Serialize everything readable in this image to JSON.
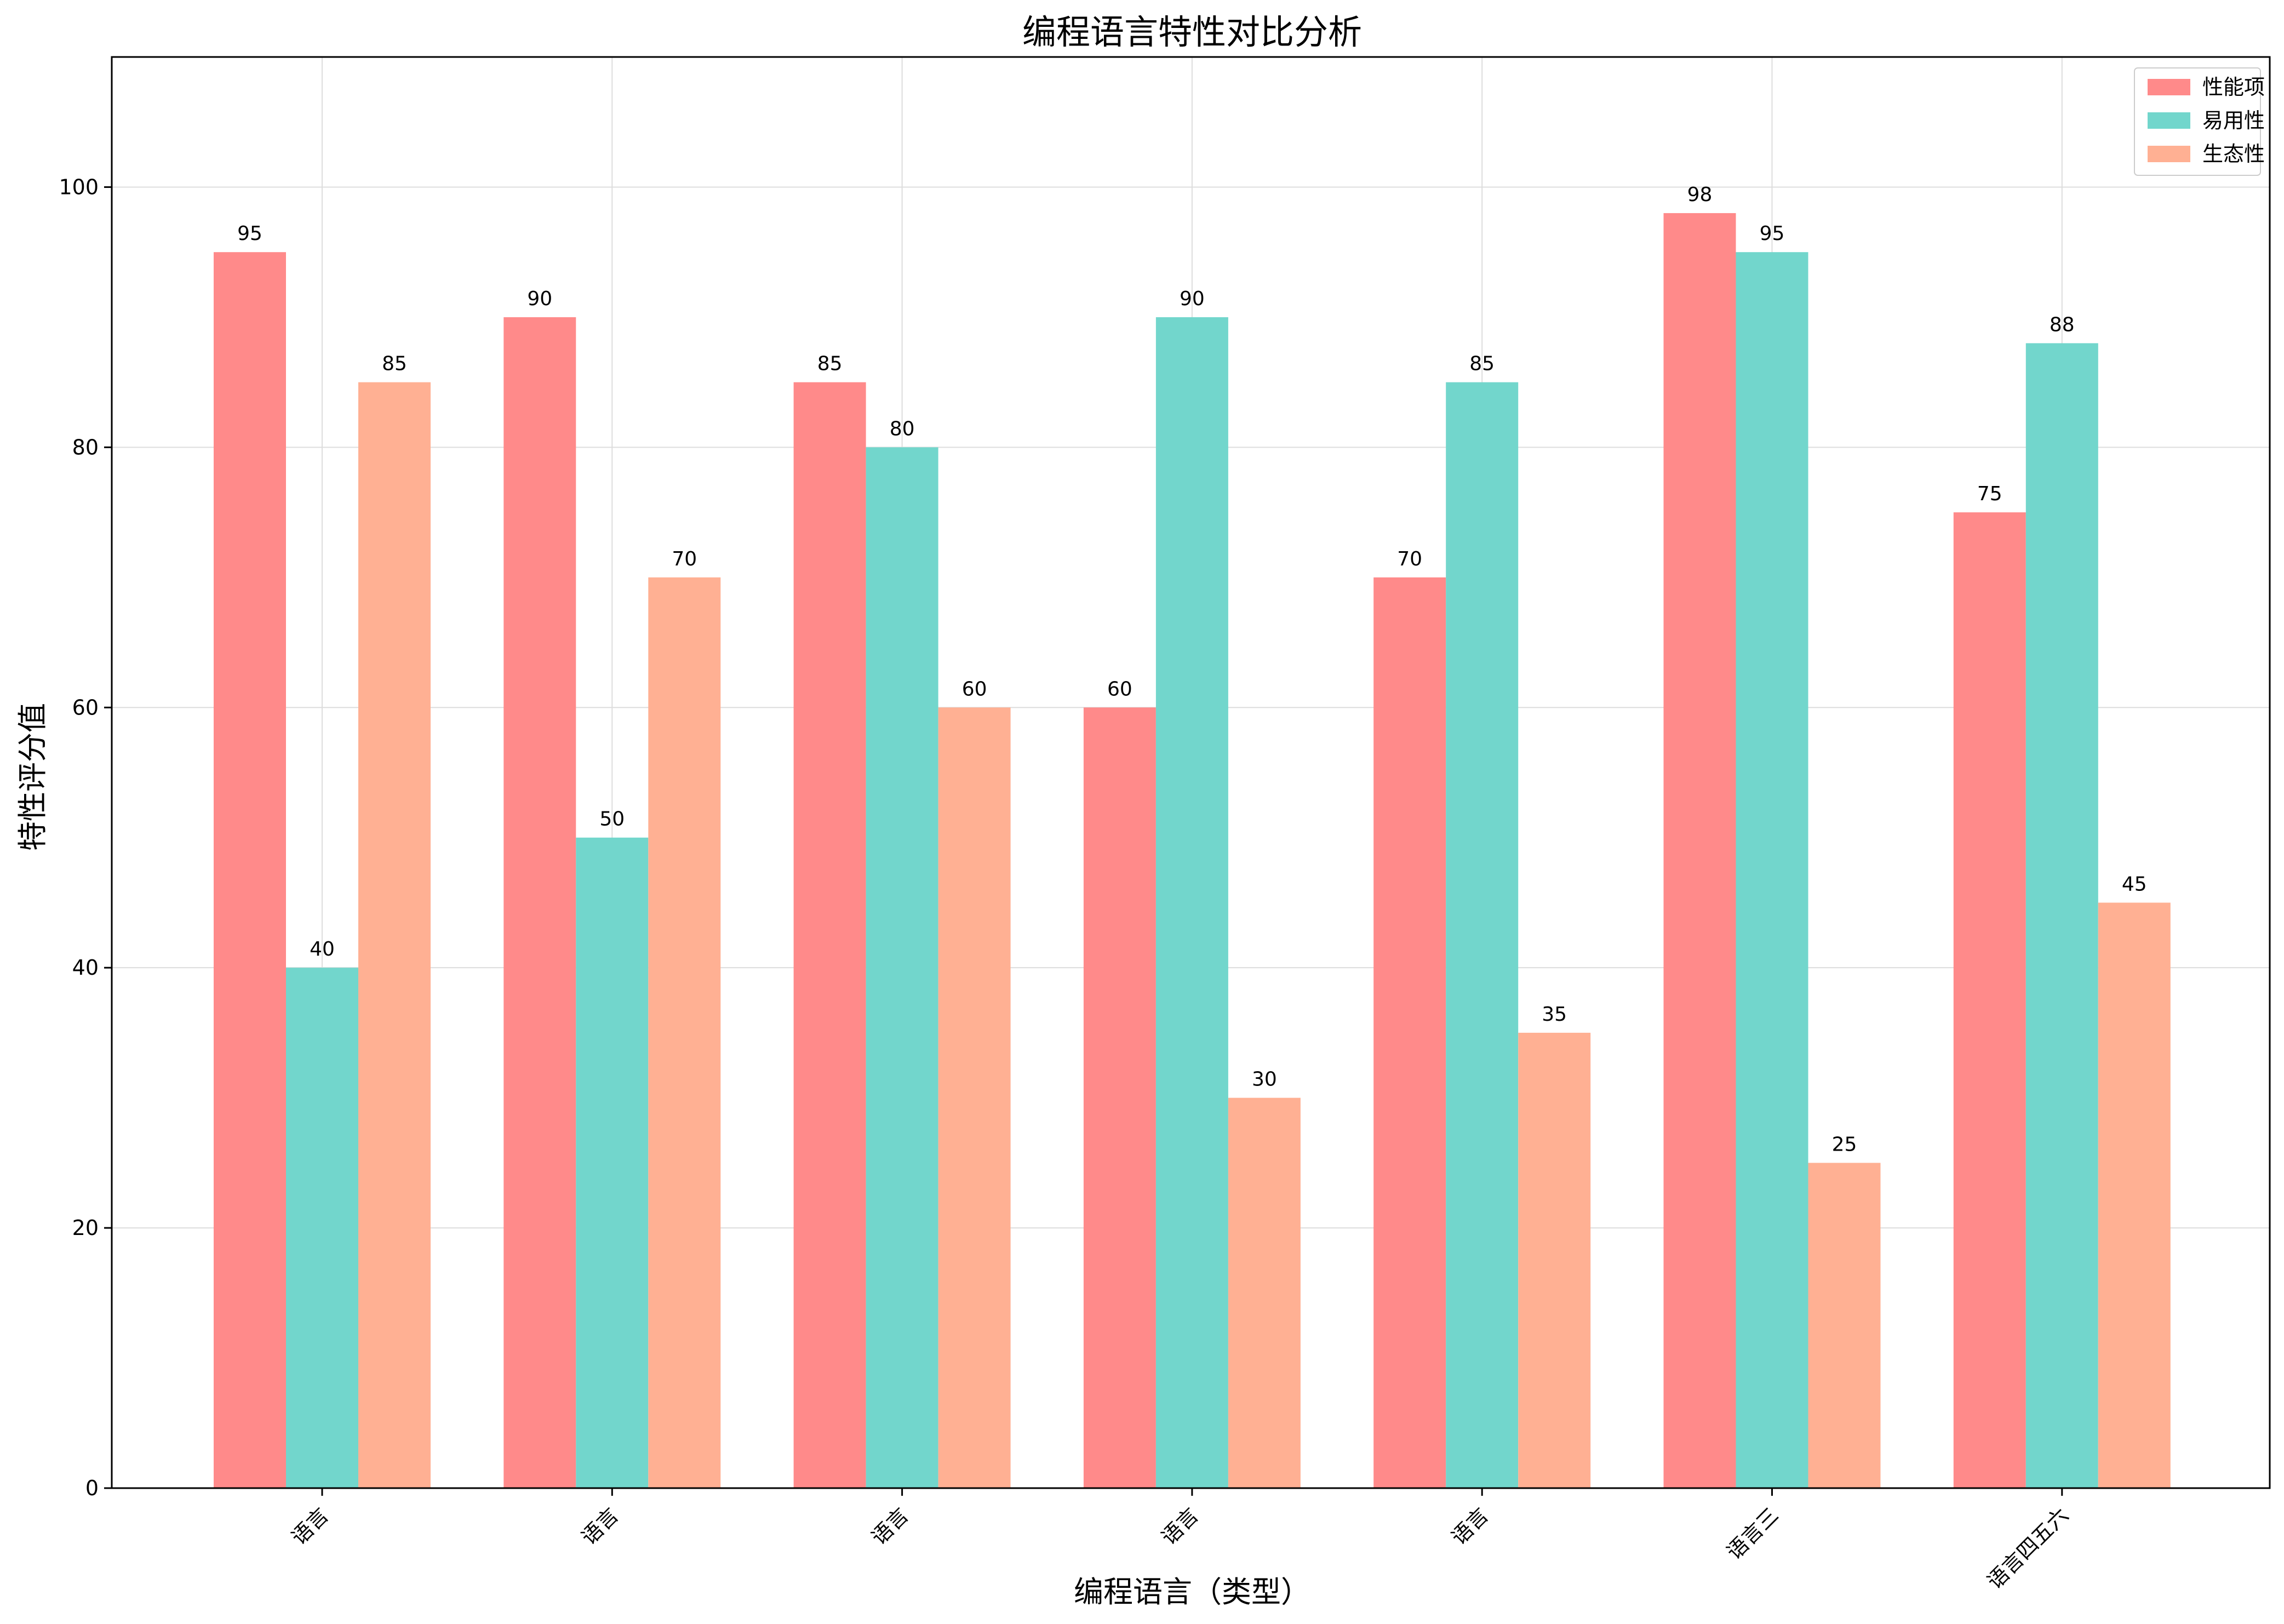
{
  "chart_data": {
    "type": "bar",
    "title": "编程语言特性对比分析",
    "xlabel": "编程语言（类型）",
    "ylabel": "特性评分值",
    "categories": [
      "语言",
      "语言",
      "语言",
      "语言",
      "语言",
      "语言三",
      "语言四五六"
    ],
    "series": [
      {
        "name": "性能项",
        "color": "#ff8a8a",
        "values": [
          95,
          90,
          85,
          60,
          70,
          98,
          75
        ]
      },
      {
        "name": "易用性",
        "color": "#72d6cc",
        "values": [
          40,
          50,
          80,
          90,
          85,
          95,
          88
        ]
      },
      {
        "name": "生态性",
        "color": "#ffb093",
        "values": [
          85,
          70,
          60,
          30,
          35,
          25,
          45
        ]
      }
    ],
    "ylim": [
      0,
      110
    ],
    "yticks": [
      "0",
      "20",
      "40",
      "60",
      "80",
      "100"
    ],
    "grid": true,
    "legend_position": "top-right"
  }
}
